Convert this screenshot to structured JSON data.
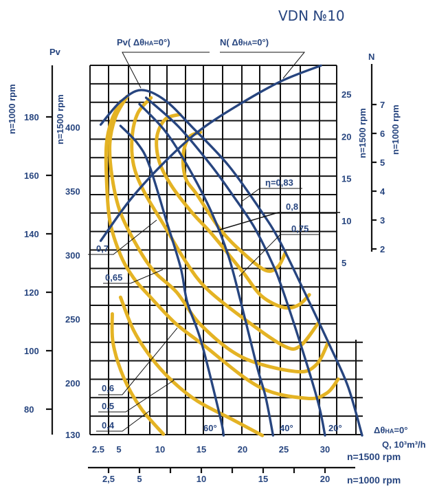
{
  "chart_data": {
    "type": "line",
    "title": "VDN №10",
    "colors": {
      "pressure": "#27457f",
      "efficiency": "#e4b324",
      "grid": "#111111"
    },
    "grid": true,
    "x_axes": [
      {
        "unit_label": "Q, 10³m³/h",
        "speed_label": "n=1500 rpm",
        "ticks": [
          {
            "v": 2.5,
            "t": "2.5"
          },
          {
            "v": 5,
            "t": "5"
          },
          {
            "v": 10,
            "t": "10"
          },
          {
            "v": 15,
            "t": "15"
          },
          {
            "v": 20,
            "t": "20"
          },
          {
            "v": 25,
            "t": "25"
          },
          {
            "v": 30,
            "t": "30"
          }
        ]
      },
      {
        "speed_label": "n=1000 rpm",
        "ticks": [
          {
            "v": 2.5,
            "t": "2,5"
          },
          {
            "v": 5,
            "t": "5"
          },
          {
            "v": 10,
            "t": "10"
          },
          {
            "v": 15,
            "t": "15"
          },
          {
            "v": 20,
            "t": "20"
          }
        ]
      }
    ],
    "y_axes_left": {
      "label": "Pv",
      "n1000": {
        "speed_label": "n=1000 rpm",
        "ticks": [
          "180",
          "160",
          "140",
          "120",
          "100",
          "80"
        ],
        "values": [
          180,
          160,
          140,
          120,
          100,
          80
        ]
      },
      "n1500": {
        "speed_label": "n=1500 rpm",
        "ticks": [
          "400",
          "350",
          "300",
          "250",
          "200"
        ],
        "values": [
          400,
          350,
          300,
          250,
          200
        ],
        "bottom_label": "130"
      }
    },
    "y_axes_right": {
      "label": "N",
      "n1500": {
        "speed_label": "n=1500 rpm",
        "ticks": [
          "25",
          "20",
          "15",
          "10",
          "5"
        ],
        "values": [
          25,
          20,
          15,
          10,
          5
        ]
      },
      "n1000": {
        "speed_label": "n=1000 rpm",
        "ticks": [
          "7",
          "6",
          "5",
          "4",
          "3",
          "2"
        ],
        "values": [
          7,
          6,
          5,
          4,
          3,
          2
        ]
      }
    },
    "curve_labels": {
      "pv": {
        "pre": "Pv( Δθ",
        "sub": "HA",
        "post": "=0°)"
      },
      "n": {
        "pre": "N( Δθ",
        "sub": "HA",
        "post": "=0°)"
      },
      "angle0": {
        "pre": "Δθ",
        "sub": "HA",
        "post": "=0°"
      }
    },
    "pressure_curves": [
      {
        "angle": "0°",
        "points": [
          [
            2.8,
            402
          ],
          [
            5.2,
            420
          ],
          [
            7.7,
            429
          ],
          [
            10.6,
            421
          ],
          [
            13.9,
            400
          ],
          [
            18.3,
            370
          ],
          [
            22.3,
            334
          ],
          [
            24.5,
            311
          ],
          [
            27.3,
            274
          ],
          [
            30.6,
            229
          ],
          [
            32.8,
            197
          ],
          [
            34.5,
            159
          ]
        ]
      },
      {
        "angle": "20°",
        "points": [
          [
            8.3,
            423
          ],
          [
            12.3,
            400
          ],
          [
            16.2,
            370
          ],
          [
            18.9,
            346
          ],
          [
            21.4,
            322
          ],
          [
            23.5,
            295
          ],
          [
            24.8,
            274
          ],
          [
            27.3,
            225
          ],
          [
            29.2,
            184
          ],
          [
            30.0,
            159
          ]
        ]
      },
      {
        "angle": "40°",
        "points": [
          [
            7.5,
            418
          ],
          [
            10.6,
            397
          ],
          [
            13.3,
            370
          ],
          [
            16.2,
            334
          ],
          [
            18.3,
            299
          ],
          [
            19.8,
            263
          ],
          [
            21.7,
            214
          ],
          [
            22.8,
            189
          ],
          [
            23.7,
            159
          ]
        ]
      },
      {
        "angle": "60°",
        "points": [
          [
            5.2,
            401
          ],
          [
            7.3,
            387
          ],
          [
            8.7,
            370
          ],
          [
            10.8,
            326
          ],
          [
            12.5,
            290
          ],
          [
            13.3,
            263
          ],
          [
            15.0,
            232
          ],
          [
            17.3,
            173
          ],
          [
            17.7,
            159
          ]
        ]
      }
    ],
    "power_curve": {
      "points": [
        [
          2.8,
          7.6
        ],
        [
          6.4,
          12.5
        ],
        [
          10.6,
          17.0
        ],
        [
          14.8,
          20.7
        ],
        [
          19.8,
          23.9
        ],
        [
          24.8,
          26.6
        ],
        [
          29.5,
          28.4
        ]
      ]
    },
    "efficiency_curves": [
      {
        "eta": "η=0,83",
        "points": [
          [
            14.9,
            396
          ],
          [
            13.5,
            392
          ],
          [
            12.8,
            378
          ],
          [
            13.1,
            360
          ],
          [
            14.5,
            347
          ],
          [
            17.3,
            320
          ],
          [
            20.0,
            302
          ],
          [
            22.8,
            288
          ],
          [
            24.3,
            291
          ],
          [
            25.2,
            302
          ]
        ]
      },
      {
        "eta": "0,8",
        "points": [
          [
            12.4,
            410
          ],
          [
            10.6,
            406
          ],
          [
            9.6,
            392
          ],
          [
            9.9,
            373
          ],
          [
            11.4,
            354
          ],
          [
            13.9,
            333
          ],
          [
            16.2,
            317
          ],
          [
            20.0,
            287
          ],
          [
            22.3,
            268
          ],
          [
            25.0,
            259
          ],
          [
            26.8,
            261
          ],
          [
            28.1,
            269
          ]
        ]
      },
      {
        "eta": "0,75",
        "points": [
          [
            8.9,
            423
          ],
          [
            7.3,
            411
          ],
          [
            6.6,
            392
          ],
          [
            6.8,
            370
          ],
          [
            8.1,
            349
          ],
          [
            10.6,
            322
          ],
          [
            13.1,
            295
          ],
          [
            15.6,
            274
          ],
          [
            20.0,
            251
          ],
          [
            25.0,
            229
          ],
          [
            27.0,
            229
          ],
          [
            29.2,
            247
          ]
        ]
      },
      {
        "eta": "0,7",
        "points": [
          [
            6.0,
            424
          ],
          [
            4.6,
            408
          ],
          [
            3.9,
            387
          ],
          [
            4.2,
            360
          ],
          [
            5.2,
            333
          ],
          [
            7.3,
            306
          ],
          [
            9.3,
            287
          ],
          [
            12.0,
            271
          ],
          [
            15.0,
            245
          ],
          [
            20.0,
            220
          ],
          [
            26.4,
            209
          ],
          [
            28.9,
            214
          ],
          [
            30.4,
            232
          ]
        ]
      },
      {
        "eta": "0,65",
        "points": [
          [
            5.2,
            420
          ],
          [
            4.1,
            405
          ],
          [
            3.5,
            387
          ],
          [
            3.5,
            360
          ],
          [
            3.9,
            327
          ],
          [
            5.2,
            300
          ],
          [
            6.8,
            282
          ],
          [
            8.7,
            268
          ],
          [
            11.8,
            247
          ],
          [
            15.0,
            231
          ],
          [
            22.0,
            197
          ],
          [
            27.8,
            188
          ],
          [
            30.2,
            192
          ],
          [
            31.6,
            203
          ]
        ]
      },
      {
        "eta": "0,6",
        "points": [
          [
            5.2,
            267
          ],
          [
            6.8,
            241
          ],
          [
            8.9,
            220
          ],
          [
            11.4,
            202
          ],
          [
            14.5,
            186
          ],
          [
            18.9,
            171
          ],
          [
            22.4,
            159
          ]
        ]
      },
      {
        "eta": "0,5",
        "points": [
          [
            4.2,
            254
          ],
          [
            4.3,
            231
          ],
          [
            5.6,
            204
          ],
          [
            7.7,
            180
          ],
          [
            10.4,
            160
          ]
        ]
      },
      {
        "eta": "0,4",
        "points": []
      }
    ]
  }
}
